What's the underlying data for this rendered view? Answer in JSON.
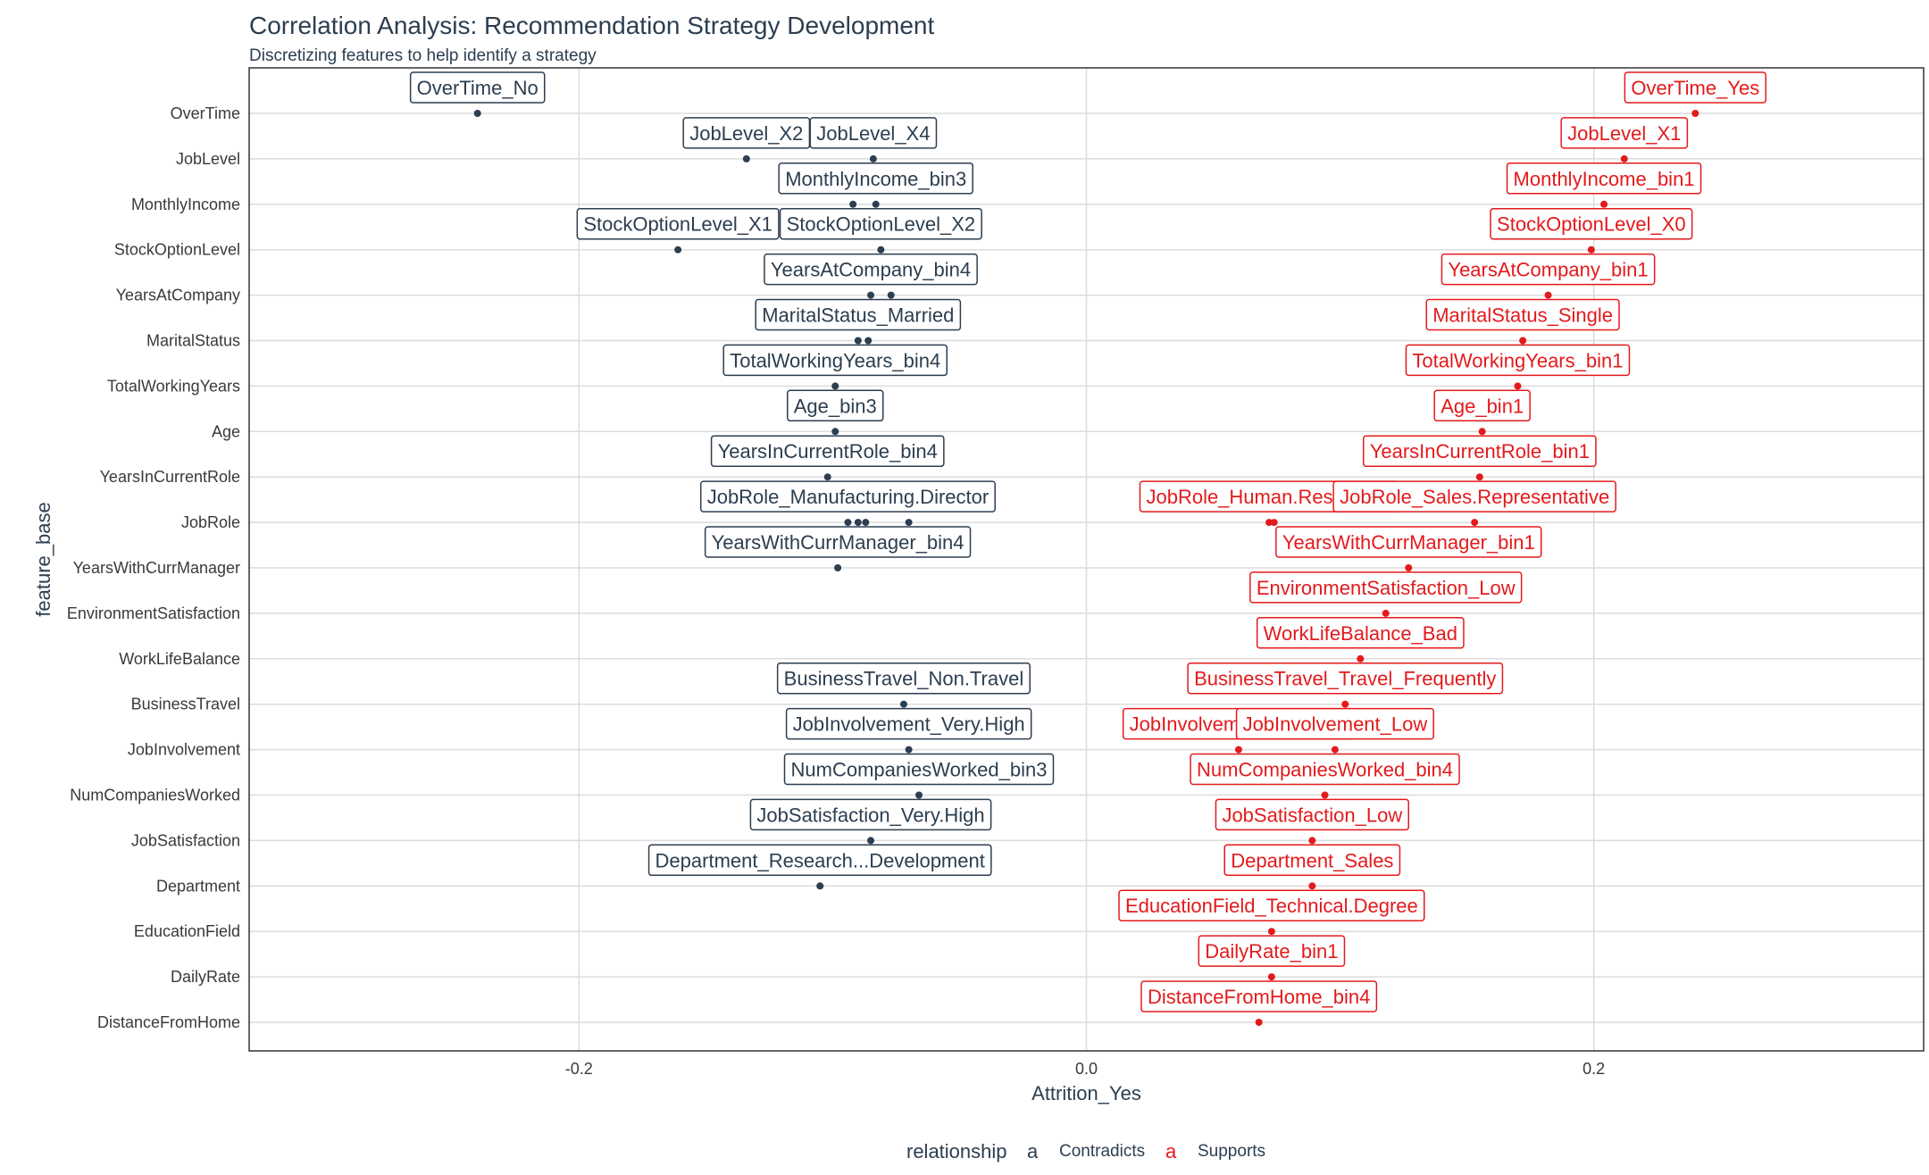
{
  "chart_data": {
    "type": "scatter",
    "title": "Correlation Analysis: Recommendation Strategy Development",
    "subtitle": "Discretizing features to help identify a strategy",
    "xlabel": "Attrition_Yes",
    "ylabel": "feature_base",
    "xlim": [
      -0.33,
      0.33
    ],
    "x_ticks": [
      {
        "value": -0.2,
        "label": "-0.2"
      },
      {
        "value": 0.0,
        "label": "0.0"
      },
      {
        "value": 0.2,
        "label": "0.2"
      }
    ],
    "grid": true,
    "categories": [
      "OverTime",
      "JobLevel",
      "MonthlyIncome",
      "StockOptionLevel",
      "YearsAtCompany",
      "MaritalStatus",
      "TotalWorkingYears",
      "Age",
      "YearsInCurrentRole",
      "JobRole",
      "YearsWithCurrManager",
      "EnvironmentSatisfaction",
      "WorkLifeBalance",
      "BusinessTravel",
      "JobInvolvement",
      "NumCompaniesWorked",
      "JobSatisfaction",
      "Department",
      "EducationField",
      "DailyRate",
      "DistanceFromHome"
    ],
    "legend": {
      "title": "relationship",
      "key_glyph": "a",
      "position": "bottom",
      "entries": [
        {
          "name": "Contradicts",
          "color": "#2c3e50"
        },
        {
          "name": "Supports",
          "color": "#e31a1c"
        }
      ]
    },
    "series": [
      {
        "name": "Contradicts",
        "color": "#2c3e50",
        "points": [
          {
            "y": "OverTime",
            "x": -0.24,
            "label": "OverTime_No"
          },
          {
            "y": "JobLevel",
            "x": -0.134,
            "label": "JobLevel_X2"
          },
          {
            "y": "JobLevel",
            "x": -0.084,
            "label": "JobLevel_X4"
          },
          {
            "y": "MonthlyIncome",
            "x": -0.092
          },
          {
            "y": "MonthlyIncome",
            "x": -0.083,
            "label": "MonthlyIncome_bin3"
          },
          {
            "y": "StockOptionLevel",
            "x": -0.161,
            "label": "StockOptionLevel_X1"
          },
          {
            "y": "StockOptionLevel",
            "x": -0.081,
            "label": "StockOptionLevel_X2"
          },
          {
            "y": "YearsAtCompany",
            "x": -0.085,
            "label": "YearsAtCompany_bin4"
          },
          {
            "y": "YearsAtCompany",
            "x": -0.077
          },
          {
            "y": "MaritalStatus",
            "x": -0.09,
            "label": "MaritalStatus_Married"
          },
          {
            "y": "MaritalStatus",
            "x": -0.086
          },
          {
            "y": "TotalWorkingYears",
            "x": -0.099,
            "label": "TotalWorkingYears_bin4"
          },
          {
            "y": "Age",
            "x": -0.099,
            "label": "Age_bin3"
          },
          {
            "y": "YearsInCurrentRole",
            "x": -0.102,
            "label": "YearsInCurrentRole_bin4"
          },
          {
            "y": "JobRole",
            "x": -0.094,
            "label": "JobRole_Manufacturing.Director"
          },
          {
            "y": "JobRole",
            "x": -0.09
          },
          {
            "y": "JobRole",
            "x": -0.087
          },
          {
            "y": "JobRole",
            "x": -0.07
          },
          {
            "y": "YearsWithCurrManager",
            "x": -0.098,
            "label": "YearsWithCurrManager_bin4"
          },
          {
            "y": "BusinessTravel",
            "x": -0.072,
            "label": "BusinessTravel_Non.Travel"
          },
          {
            "y": "JobInvolvement",
            "x": -0.07,
            "label": "JobInvolvement_Very.High"
          },
          {
            "y": "NumCompaniesWorked",
            "x": -0.066,
            "label": "NumCompaniesWorked_bin3"
          },
          {
            "y": "JobSatisfaction",
            "x": -0.085,
            "label": "JobSatisfaction_Very.High"
          },
          {
            "y": "Department",
            "x": -0.105,
            "label": "Department_Research...Development"
          }
        ]
      },
      {
        "name": "Supports",
        "color": "#e31a1c",
        "points": [
          {
            "y": "OverTime",
            "x": 0.24,
            "label": "OverTime_Yes"
          },
          {
            "y": "JobLevel",
            "x": 0.212,
            "label": "JobLevel_X1"
          },
          {
            "y": "MonthlyIncome",
            "x": 0.204,
            "label": "MonthlyIncome_bin1"
          },
          {
            "y": "StockOptionLevel",
            "x": 0.199,
            "label": "StockOptionLevel_X0"
          },
          {
            "y": "YearsAtCompany",
            "x": 0.182,
            "label": "YearsAtCompany_bin1"
          },
          {
            "y": "MaritalStatus",
            "x": 0.172,
            "label": "MaritalStatus_Single"
          },
          {
            "y": "TotalWorkingYears",
            "x": 0.17,
            "label": "TotalWorkingYears_bin1"
          },
          {
            "y": "Age",
            "x": 0.156,
            "label": "Age_bin1"
          },
          {
            "y": "YearsInCurrentRole",
            "x": 0.155,
            "label": "YearsInCurrentRole_bin1"
          },
          {
            "y": "JobRole",
            "x": 0.072,
            "label": "JobRole_Human.Resources"
          },
          {
            "y": "JobRole",
            "x": 0.074
          },
          {
            "y": "JobRole",
            "x": 0.153,
            "label": "JobRole_Sales.Representative"
          },
          {
            "y": "YearsWithCurrManager",
            "x": 0.127,
            "label": "YearsWithCurrManager_bin1"
          },
          {
            "y": "EnvironmentSatisfaction",
            "x": 0.118,
            "label": "EnvironmentSatisfaction_Low"
          },
          {
            "y": "WorkLifeBalance",
            "x": 0.108,
            "label": "WorkLifeBalance_Bad"
          },
          {
            "y": "BusinessTravel",
            "x": 0.102,
            "label": "BusinessTravel_Travel_Frequently"
          },
          {
            "y": "JobInvolvement",
            "x": 0.06,
            "label": "JobInvolvement_Medium"
          },
          {
            "y": "JobInvolvement",
            "x": 0.098,
            "label": "JobInvolvement_Low"
          },
          {
            "y": "NumCompaniesWorked",
            "x": 0.094,
            "label": "NumCompaniesWorked_bin4"
          },
          {
            "y": "JobSatisfaction",
            "x": 0.089,
            "label": "JobSatisfaction_Low"
          },
          {
            "y": "Department",
            "x": 0.089,
            "label": "Department_Sales"
          },
          {
            "y": "EducationField",
            "x": 0.073,
            "label": "EducationField_Technical.Degree"
          },
          {
            "y": "DailyRate",
            "x": 0.073,
            "label": "DailyRate_bin1"
          },
          {
            "y": "DistanceFromHome",
            "x": 0.068,
            "label": "DistanceFromHome_bin4"
          }
        ]
      }
    ]
  }
}
